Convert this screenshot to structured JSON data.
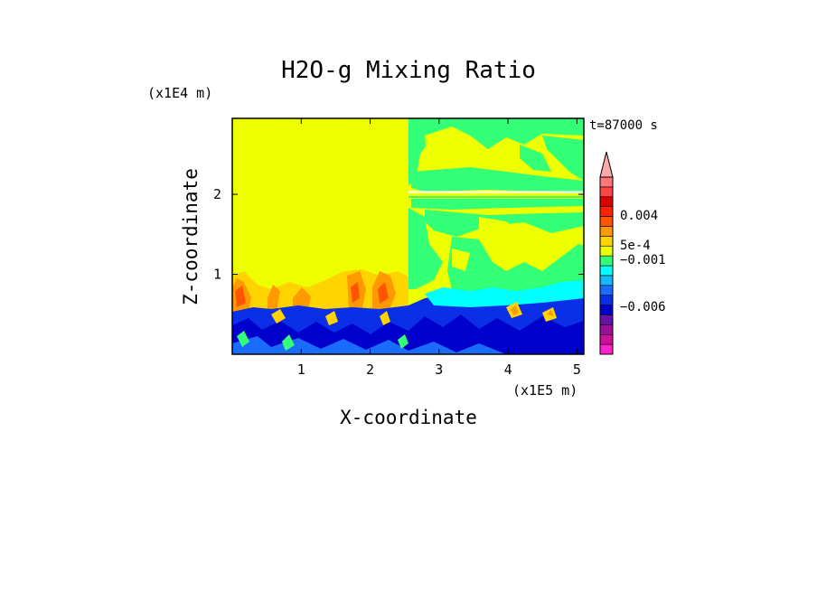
{
  "chart_data": {
    "type": "heatmap",
    "title": "H2O-g Mixing Ratio",
    "xlabel": "X-coordinate",
    "ylabel": "Z-coordinate",
    "x_unit": "(x1E5 m)",
    "y_unit": "(x1E4 m)",
    "time_label": "t=87000 s",
    "xlim": [
      0,
      5.1
    ],
    "ylim": [
      0,
      2.95
    ],
    "x_ticks": [
      {
        "value": 1,
        "label": "1"
      },
      {
        "value": 2,
        "label": "2"
      },
      {
        "value": 3,
        "label": "3"
      },
      {
        "value": 4,
        "label": "4"
      },
      {
        "value": 5,
        "label": "5"
      }
    ],
    "y_ticks": [
      {
        "value": 1,
        "label": "1"
      },
      {
        "value": 2,
        "label": "2"
      }
    ],
    "colorbar": {
      "levels_bottom_to_top": [
        "#ff22cc",
        "#cc1199",
        "#991199",
        "#6611aa",
        "#0000cc",
        "#0a2fe6",
        "#1a6cff",
        "#12b9ff",
        "#00ffff",
        "#33ff77",
        "#eeff00",
        "#ffd400",
        "#ff9900",
        "#ff5500",
        "#ff2200",
        "#dd0000",
        "#ff4444",
        "#ff7777"
      ],
      "extend_top_color": "#ffaaaa",
      "labels": [
        "0.004",
        "5e-4",
        "−0.001",
        "−0.006"
      ]
    },
    "field_description_colors": {
      "background": "#eeff00",
      "moist_region": "#33ff77",
      "cyan": "#00ffff",
      "blue": "#0a2fe6",
      "dark_blue": "#0000cc",
      "orange": "#ff9900",
      "red_orange": "#ff5500"
    }
  }
}
